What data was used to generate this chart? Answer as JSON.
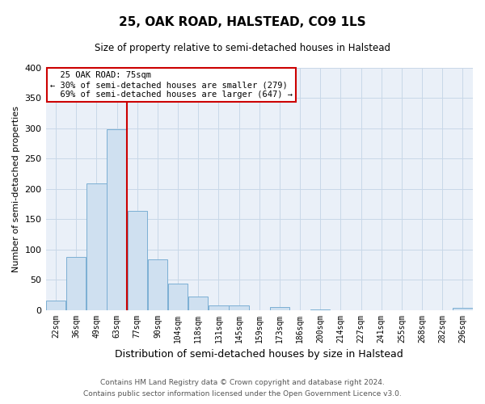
{
  "title": "25, OAK ROAD, HALSTEAD, CO9 1LS",
  "subtitle": "Size of property relative to semi-detached houses in Halstead",
  "xlabel": "Distribution of semi-detached houses by size in Halstead",
  "ylabel": "Number of semi-detached properties",
  "bin_labels": [
    "22sqm",
    "36sqm",
    "49sqm",
    "63sqm",
    "77sqm",
    "90sqm",
    "104sqm",
    "118sqm",
    "131sqm",
    "145sqm",
    "159sqm",
    "173sqm",
    "186sqm",
    "200sqm",
    "214sqm",
    "227sqm",
    "241sqm",
    "255sqm",
    "268sqm",
    "282sqm",
    "296sqm"
  ],
  "bar_heights": [
    15,
    87,
    209,
    298,
    163,
    84,
    44,
    22,
    8,
    8,
    0,
    5,
    0,
    1,
    0,
    0,
    0,
    0,
    0,
    0,
    4
  ],
  "bar_color": "#cfe0f0",
  "bar_edge_color": "#7bafd4",
  "ylim": [
    0,
    400
  ],
  "yticks": [
    0,
    50,
    100,
    150,
    200,
    250,
    300,
    350,
    400
  ],
  "property_label": "25 OAK ROAD: 75sqm",
  "pct_smaller": 30,
  "pct_larger": 69,
  "n_smaller": 279,
  "n_larger": 647,
  "vline_bin_index": 4,
  "vline_color": "#cc0000",
  "annotation_box_color": "#cc0000",
  "grid_color": "#c8d8e8",
  "bg_color": "#eaf0f8",
  "footer_line1": "Contains HM Land Registry data © Crown copyright and database right 2024.",
  "footer_line2": "Contains public sector information licensed under the Open Government Licence v3.0."
}
